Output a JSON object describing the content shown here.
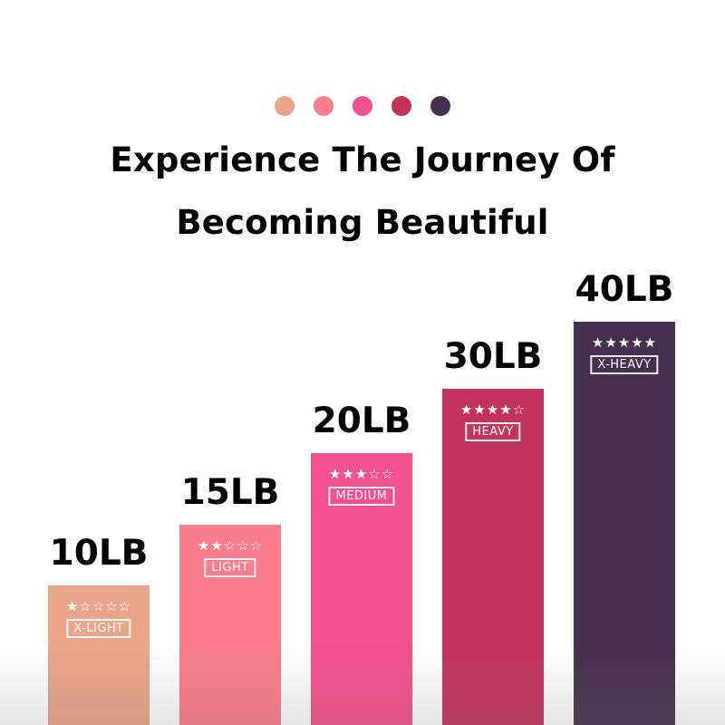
{
  "dot_colors": [
    "#EBA58A",
    "#F97D8A",
    "#F2508F",
    "#C4335E",
    "#47304F"
  ],
  "title_line1": "Experience The Journey Of",
  "title_line2": "Becoming Beautiful",
  "bands": [
    {
      "weight": "10LB",
      "level": "X-LIGHT",
      "stars": "★☆☆☆☆",
      "rating": 1,
      "color": "#EBA58A"
    },
    {
      "weight": "15LB",
      "level": "LIGHT",
      "stars": "★★☆☆☆",
      "rating": 2,
      "color": "#F97D8A"
    },
    {
      "weight": "20LB",
      "level": "MEDIUM",
      "stars": "★★★☆☆",
      "rating": 3,
      "color": "#F2508F"
    },
    {
      "weight": "30LB",
      "level": "HEAVY",
      "stars": "★★★★☆",
      "rating": 4,
      "color": "#C4335E"
    },
    {
      "weight": "40LB",
      "level": "X-HEAVY",
      "stars": "★★★★★",
      "rating": 5,
      "color": "#47304F"
    }
  ]
}
